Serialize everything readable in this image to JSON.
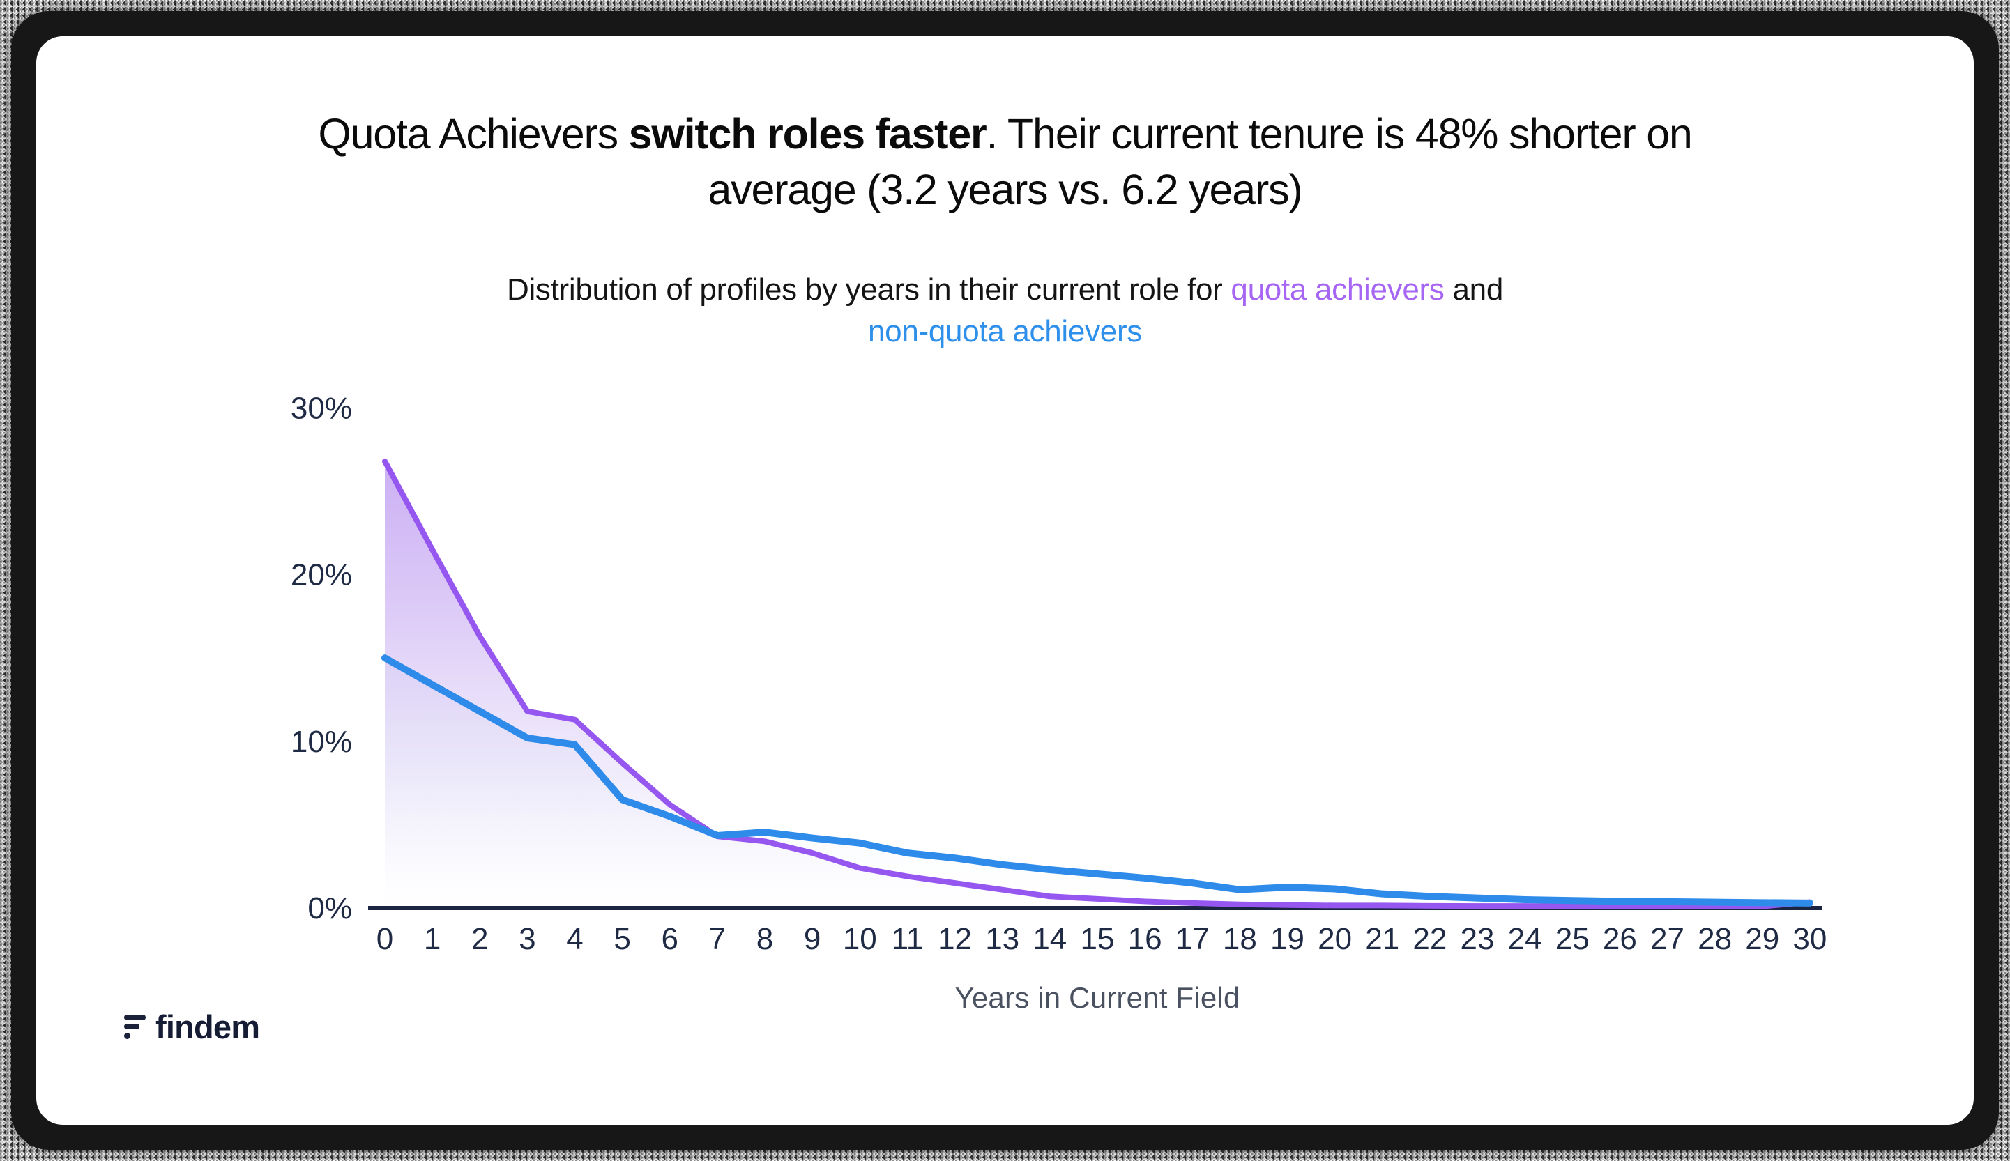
{
  "title": {
    "part1": "Quota Achievers ",
    "bold": "switch roles faster",
    "part2a": ". Their current tenure is 48% shorter on",
    "part2b": "average (3.2 years vs. 6.2 years)"
  },
  "subtitle": {
    "part1": "Distribution of profiles by years in their current role for ",
    "quota_label": "quota achievers",
    "part2": " and",
    "nonquota_label": "non-quota achievers"
  },
  "colors": {
    "quota_line": "#9557ef",
    "quota_fill_top": "#bf9cf2",
    "nonquota_line": "#2e8be9",
    "subtitle_quota": "#a665f2",
    "subtitle_nonquota": "#2e90ea",
    "axis_line": "#1b2440",
    "tick_label": "#1f2a44",
    "xaxis_title": "#4a5160"
  },
  "chart_data": {
    "type": "area",
    "title": "Distribution of profiles by years in their current role for quota achievers and non-quota achievers",
    "xlabel": "Years in Current Field",
    "ylabel": "",
    "ylim": [
      0,
      30
    ],
    "y_ticks": [
      "0%",
      "10%",
      "20%",
      "30%"
    ],
    "grid": false,
    "legend": "none (series named by color in subtitle)",
    "x": [
      0,
      1,
      2,
      3,
      4,
      5,
      6,
      7,
      8,
      9,
      10,
      11,
      12,
      13,
      14,
      15,
      16,
      17,
      18,
      19,
      20,
      21,
      22,
      23,
      24,
      25,
      26,
      27,
      28,
      29,
      30
    ],
    "series": [
      {
        "name": "quota achievers",
        "color": "#9557ef",
        "values": [
          26.8,
          21.5,
          16.3,
          11.8,
          11.3,
          8.7,
          6.2,
          4.3,
          4.0,
          3.3,
          2.4,
          1.9,
          1.5,
          1.1,
          0.7,
          0.55,
          0.4,
          0.3,
          0.22,
          0.18,
          0.15,
          0.15,
          0.13,
          0.12,
          0.12,
          0.1,
          0.1,
          0.1,
          0.1,
          0.1,
          0.35
        ]
      },
      {
        "name": "non-quota achievers",
        "color": "#2e8be9",
        "values": [
          15.0,
          13.4,
          11.8,
          10.2,
          9.8,
          6.5,
          5.5,
          4.35,
          4.55,
          4.2,
          3.9,
          3.3,
          3.0,
          2.6,
          2.3,
          2.05,
          1.8,
          1.5,
          1.1,
          1.25,
          1.15,
          0.85,
          0.7,
          0.6,
          0.5,
          0.45,
          0.4,
          0.38,
          0.35,
          0.32,
          0.3
        ]
      }
    ]
  },
  "axis": {
    "x_label": "Years in Current Field"
  },
  "footer": {
    "logo_text": "findem"
  }
}
